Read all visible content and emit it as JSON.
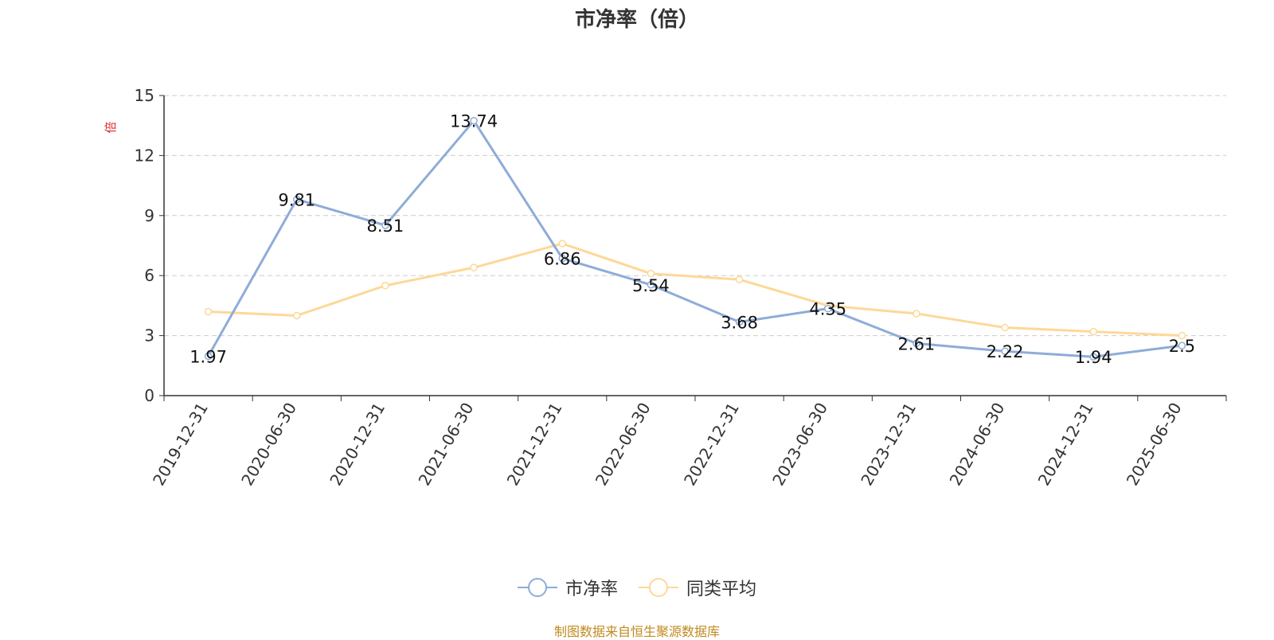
{
  "chart_data": {
    "type": "line",
    "title": "市净率（倍）",
    "ylabel": "倍",
    "ylim": [
      0,
      15
    ],
    "yticks": [
      0,
      3,
      6,
      9,
      12,
      15
    ],
    "grid": true,
    "legend_position": "bottom-center",
    "categories": [
      "2019-12-31",
      "2020-06-30",
      "2020-12-31",
      "2021-06-30",
      "2021-12-31",
      "2022-06-30",
      "2022-12-31",
      "2023-06-30",
      "2023-12-31",
      "2024-06-30",
      "2024-12-31",
      "2025-06-30"
    ],
    "series": [
      {
        "name": "市净率",
        "color": "#8eacd8",
        "values": [
          1.97,
          9.81,
          8.51,
          13.74,
          6.86,
          5.54,
          3.68,
          4.35,
          2.61,
          2.22,
          1.94,
          2.5
        ],
        "labels": [
          "1.97",
          "9.81",
          "8.51",
          "13.74",
          "6.86",
          "5.54",
          "3.68",
          "4.35",
          "2.61",
          "2.22",
          "1.94",
          "2.5"
        ]
      },
      {
        "name": "同类平均",
        "color": "#fdd898",
        "values": [
          4.2,
          4.0,
          5.5,
          6.4,
          7.6,
          6.1,
          5.8,
          4.5,
          4.1,
          3.4,
          3.2,
          3.0
        ]
      }
    ],
    "source": "制图数据来自恒生聚源数据库"
  }
}
